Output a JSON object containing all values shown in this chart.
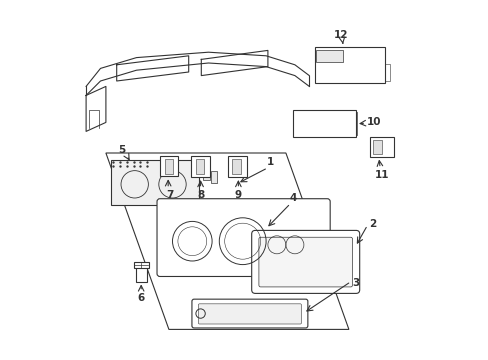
{
  "bg_color": "#ffffff",
  "line_color": "#333333",
  "fig_width": 4.89,
  "fig_height": 3.6,
  "dpi": 100
}
